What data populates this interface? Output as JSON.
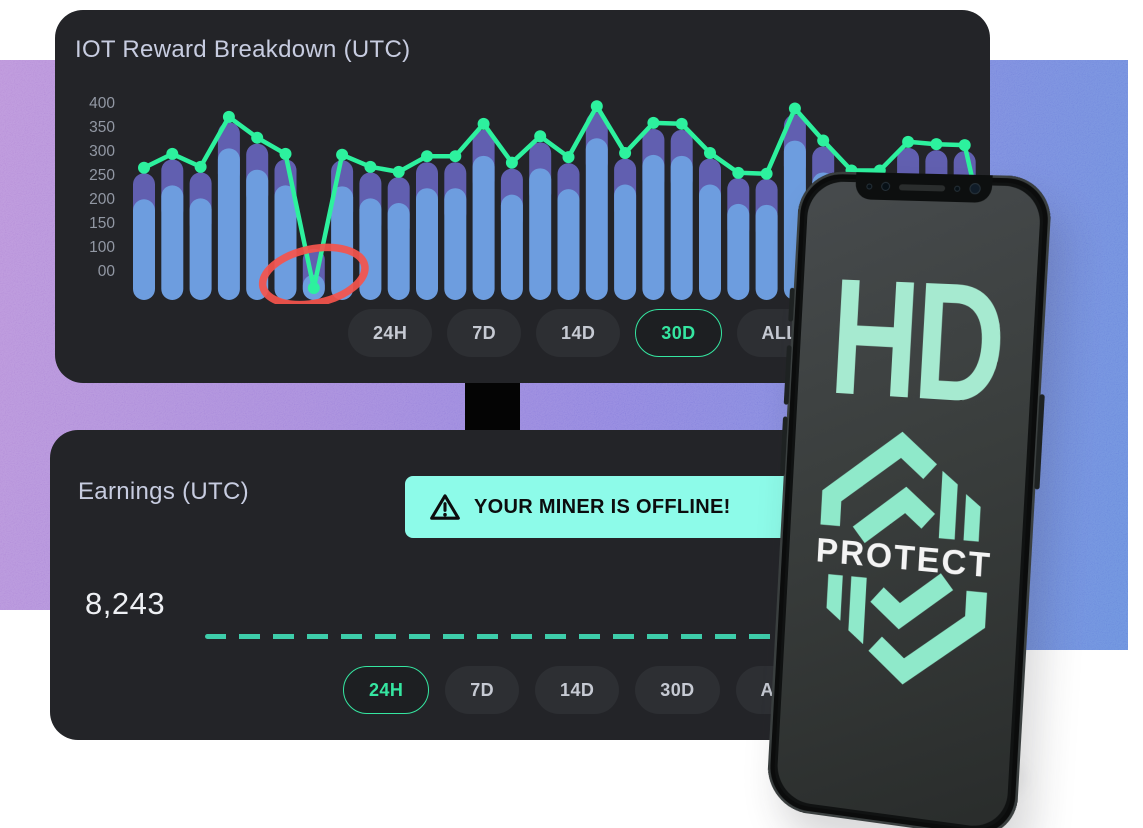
{
  "reward_card": {
    "title": "IOT Reward Breakdown (UTC)",
    "timeframes": [
      {
        "label": "24H",
        "selected": false
      },
      {
        "label": "7D",
        "selected": false
      },
      {
        "label": "14D",
        "selected": false
      },
      {
        "label": "30D",
        "selected": true
      },
      {
        "label": "ALL",
        "selected": false
      }
    ]
  },
  "chart_data": {
    "type": "bar",
    "title": "IOT Reward Breakdown (UTC)",
    "x_axis": "30 unlabeled time periods (30D view)",
    "y_tick_labels": [
      "400",
      "350",
      "300",
      "250",
      "200",
      "150",
      "100",
      "00"
    ],
    "ylim": [
      0,
      400
    ],
    "grid": false,
    "legend": "none",
    "series": [
      {
        "name": "reward-bars",
        "type": "bar",
        "values": [
          248,
          278,
          250,
          358,
          312,
          278,
          85,
          276,
          250,
          240,
          272,
          272,
          342,
          258,
          315,
          270,
          380,
          280,
          344,
          342,
          280,
          238,
          236,
          375,
          306,
          242,
          242,
          303,
          298,
          296
        ]
      },
      {
        "name": "reward-line",
        "type": "line",
        "values": [
          260,
          290,
          262,
          370,
          325,
          290,
          0,
          288,
          262,
          251,
          285,
          285,
          355,
          271,
          328,
          283,
          393,
          292,
          357,
          355,
          292,
          249,
          247,
          388,
          319,
          254,
          254,
          316,
          311,
          309
        ]
      }
    ],
    "annotations": [
      {
        "type": "hand-drawn-circle",
        "target_index": 6,
        "meaning": "offline dip circled",
        "color": "#f4544c"
      }
    ]
  },
  "earnings_card": {
    "title": "Earnings (UTC)",
    "alert": {
      "icon": "warning-triangle-icon",
      "text": "YOUR MINER IS OFFLINE!"
    },
    "value": "8,243",
    "timeframes": [
      {
        "label": "24H",
        "selected": true
      },
      {
        "label": "7D",
        "selected": false
      },
      {
        "label": "14D",
        "selected": false
      },
      {
        "label": "30D",
        "selected": false
      },
      {
        "label": "ALL",
        "selected": false
      }
    ]
  },
  "phone_screen": {
    "brand_line1": "HD",
    "brand_line2": "PROTECT",
    "logo": "hexagon-chevron-emblem"
  },
  "colors": {
    "card_bg": "#232428",
    "title_col": "#c7cce0",
    "label_col": "#9298a4",
    "accent_green": "#35e6a1",
    "line_green": "#2df19e",
    "bar_blue": "#6d9ddf",
    "bar_cap_purple": "#615fb0",
    "alert_mint": "#8dfbe9",
    "annotation_red": "#f4544c",
    "dash_teal": "#3ecdaa",
    "bg_gradient_left": "#b183d5",
    "bg_gradient_right": "#5f7ed9",
    "logo_mint": "#8fe9ca"
  }
}
